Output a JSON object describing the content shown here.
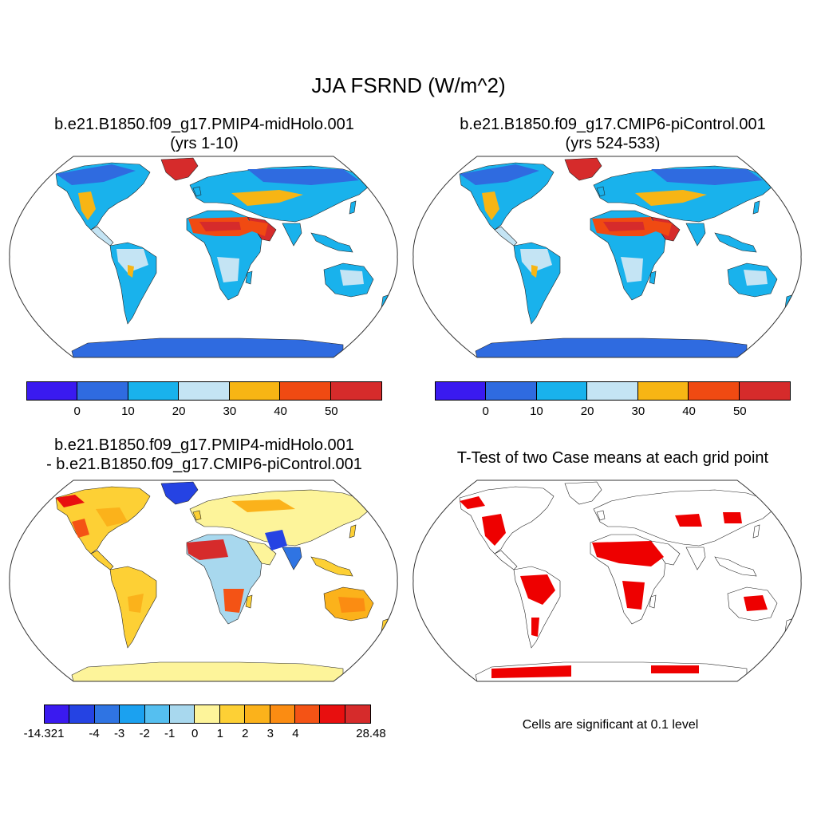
{
  "title": "JJA FSRND (W/m^2)",
  "panels": {
    "p1": {
      "title_line1": "b.e21.B1850.f09_g17.PMIP4-midHolo.001",
      "title_line2": "(yrs 1-10)"
    },
    "p2": {
      "title_line1": "b.e21.B1850.f09_g17.CMIP6-piControl.001",
      "title_line2": "(yrs 524-533)"
    },
    "p3": {
      "title_line1": "b.e21.B1850.f09_g17.PMIP4-midHolo.001",
      "title_line2": "- b.e21.B1850.f09_g17.CMIP6-piControl.001"
    },
    "p4": {
      "title_line1": "T-Test of two Case means at each grid point",
      "note": "Cells are significant at 0.1 level"
    }
  },
  "colorbar_abs": {
    "colors": [
      "#3a1af0",
      "#2f6be0",
      "#19b2ec",
      "#c4e4f4",
      "#f7b514",
      "#f04a12",
      "#d62b2b"
    ],
    "labels": [
      "0",
      "10",
      "20",
      "30",
      "40",
      "50"
    ]
  },
  "colorbar_diff": {
    "colors": [
      "#3a1af0",
      "#2543e3",
      "#2f74e3",
      "#1ba1f0",
      "#55bff0",
      "#a8d8ee",
      "#fdf49a",
      "#fdd035",
      "#fbb21b",
      "#fb8c12",
      "#f45315",
      "#e80f0f",
      "#d62b2b"
    ],
    "labels": [
      "-14.321",
      "-4",
      "-3",
      "-2",
      "-1",
      "0",
      "1",
      "2",
      "3",
      "4",
      "28.48"
    ]
  },
  "significance_color": "#ee0000"
}
